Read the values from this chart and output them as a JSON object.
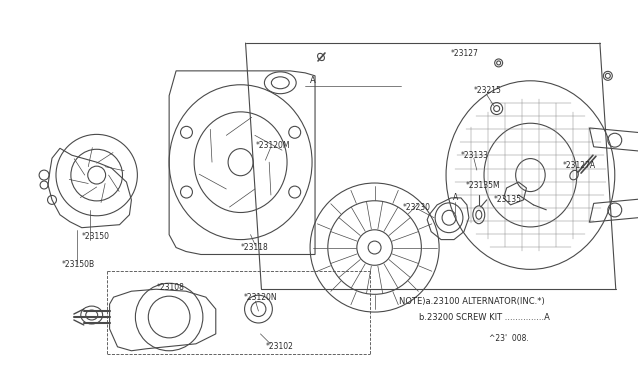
{
  "bg_color": "#ffffff",
  "line_color": "#4a4a4a",
  "text_color": "#2a2a2a",
  "note_line1": "NOTE)a.23100 ALTERNATOR(INC.*)",
  "note_line2": "b.23200 SCREW KIT ...............A",
  "footer": "^23'  008."
}
